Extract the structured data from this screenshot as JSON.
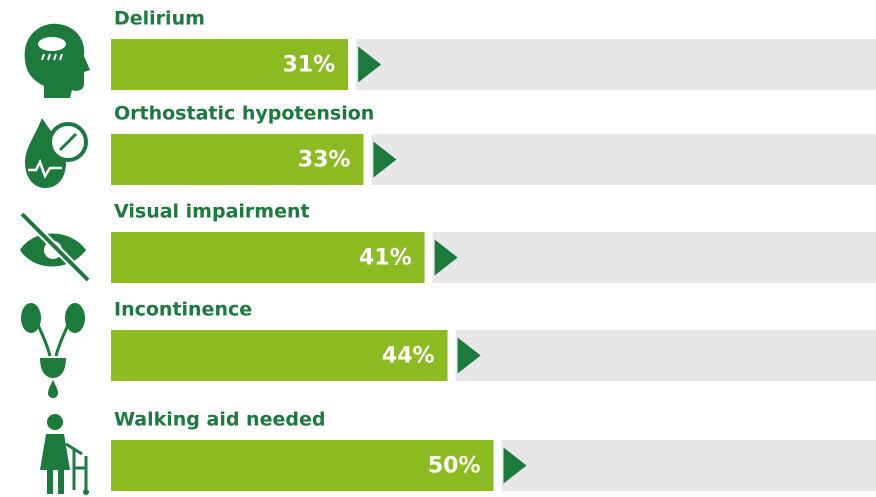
{
  "chart_data": {
    "type": "bar",
    "categories": [
      "Delirium",
      "Orthostatic hypotension",
      "Visual impairment",
      "Incontinence",
      "Walking aid needed"
    ],
    "values": [
      31,
      33,
      41,
      44,
      50
    ],
    "value_labels": [
      "31%",
      "33%",
      "41%",
      "44%",
      "50%"
    ],
    "color": "#8dbb22",
    "arrow_color": "#1b7a3c",
    "track_color": "#e7e7e7",
    "xlim": [
      0,
      100
    ]
  }
}
